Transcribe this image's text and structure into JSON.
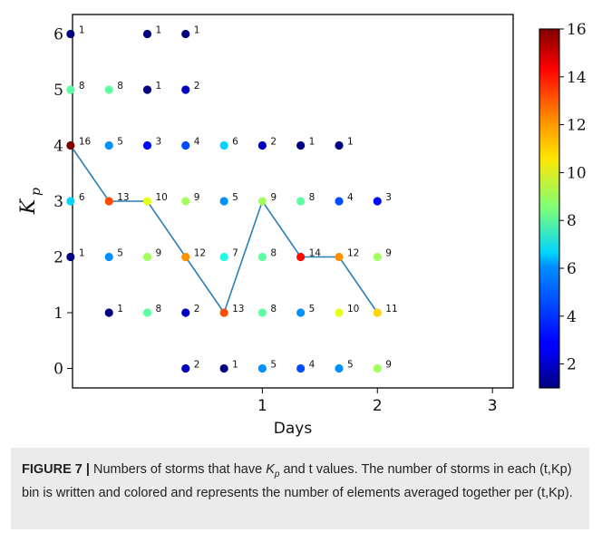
{
  "chart_data": {
    "type": "scatter",
    "xlabel": "Days",
    "ylabel_main": "K",
    "ylabel_sub": "p",
    "xlim": [
      -0.65,
      3.18
    ],
    "ylim": [
      -0.35,
      6.35
    ],
    "xticks": [
      1,
      2,
      3
    ],
    "xtick_labels": [
      "1",
      "2",
      "3"
    ],
    "yticks": [
      0,
      1,
      2,
      3,
      4,
      5,
      6
    ],
    "ytick_labels": [
      "0",
      "1",
      "2",
      "3",
      "4",
      "5",
      "6"
    ],
    "colorbar": {
      "min": 1,
      "max": 16,
      "ticks": [
        2,
        4,
        6,
        8,
        10,
        12,
        14,
        16
      ],
      "tick_labels": [
        "2",
        "4",
        "6",
        "8",
        "10",
        "12",
        "14",
        "16"
      ],
      "colormap": "jet"
    },
    "points": [
      {
        "x": -0.667,
        "y": 6,
        "count": 1
      },
      {
        "x": -0.667,
        "y": 5,
        "count": 8
      },
      {
        "x": -0.667,
        "y": 4,
        "count": 16
      },
      {
        "x": -0.667,
        "y": 3,
        "count": 6
      },
      {
        "x": -0.667,
        "y": 2,
        "count": 1
      },
      {
        "x": -0.333,
        "y": 5,
        "count": 8
      },
      {
        "x": -0.333,
        "y": 4,
        "count": 5
      },
      {
        "x": -0.333,
        "y": 3,
        "count": 13
      },
      {
        "x": -0.333,
        "y": 2,
        "count": 5
      },
      {
        "x": -0.333,
        "y": 1,
        "count": 1
      },
      {
        "x": 0,
        "y": 6,
        "count": 1
      },
      {
        "x": 0,
        "y": 5,
        "count": 1
      },
      {
        "x": 0,
        "y": 4,
        "count": 3
      },
      {
        "x": 0,
        "y": 3,
        "count": 10
      },
      {
        "x": 0,
        "y": 2,
        "count": 9
      },
      {
        "x": 0,
        "y": 1,
        "count": 8
      },
      {
        "x": 0.333,
        "y": 6,
        "count": 1
      },
      {
        "x": 0.333,
        "y": 5,
        "count": 2
      },
      {
        "x": 0.333,
        "y": 4,
        "count": 4
      },
      {
        "x": 0.333,
        "y": 3,
        "count": 9
      },
      {
        "x": 0.333,
        "y": 2,
        "count": 12
      },
      {
        "x": 0.333,
        "y": 1,
        "count": 2
      },
      {
        "x": 0.333,
        "y": 0,
        "count": 2
      },
      {
        "x": 0.667,
        "y": 4,
        "count": 6
      },
      {
        "x": 0.667,
        "y": 3,
        "count": 5
      },
      {
        "x": 0.667,
        "y": 2,
        "count": 7
      },
      {
        "x": 0.667,
        "y": 1,
        "count": 13
      },
      {
        "x": 0.667,
        "y": 0,
        "count": 1
      },
      {
        "x": 1,
        "y": 4,
        "count": 2
      },
      {
        "x": 1,
        "y": 3,
        "count": 9
      },
      {
        "x": 1,
        "y": 2,
        "count": 8
      },
      {
        "x": 1,
        "y": 1,
        "count": 8
      },
      {
        "x": 1,
        "y": 0,
        "count": 5
      },
      {
        "x": 1.333,
        "y": 4,
        "count": 1
      },
      {
        "x": 1.333,
        "y": 3,
        "count": 8
      },
      {
        "x": 1.333,
        "y": 2,
        "count": 14
      },
      {
        "x": 1.333,
        "y": 1,
        "count": 5
      },
      {
        "x": 1.333,
        "y": 0,
        "count": 4
      },
      {
        "x": 1.667,
        "y": 4,
        "count": 1
      },
      {
        "x": 1.667,
        "y": 3,
        "count": 4
      },
      {
        "x": 1.667,
        "y": 2,
        "count": 12
      },
      {
        "x": 1.667,
        "y": 1,
        "count": 10
      },
      {
        "x": 1.667,
        "y": 0,
        "count": 5
      },
      {
        "x": 2,
        "y": 3,
        "count": 3
      },
      {
        "x": 2,
        "y": 2,
        "count": 9
      },
      {
        "x": 2,
        "y": 1,
        "count": 11
      },
      {
        "x": 2,
        "y": 0,
        "count": 9
      }
    ],
    "line": {
      "color": "#2a7fb5",
      "x": [
        -0.667,
        -0.333,
        0,
        0.333,
        0.667,
        1,
        1.333,
        1.667,
        2
      ],
      "y": [
        4,
        3,
        3,
        2,
        1,
        3,
        2,
        2,
        1
      ]
    }
  },
  "caption": {
    "label": "FIGURE 7 |",
    "text_before": " Numbers of storms that have ",
    "kp_main": "K",
    "kp_sub": "p",
    "text_after": " and t values. The number of storms in each (t,Kp) bin is written and colored and represents the number of elements averaged together per (t,Kp)."
  }
}
